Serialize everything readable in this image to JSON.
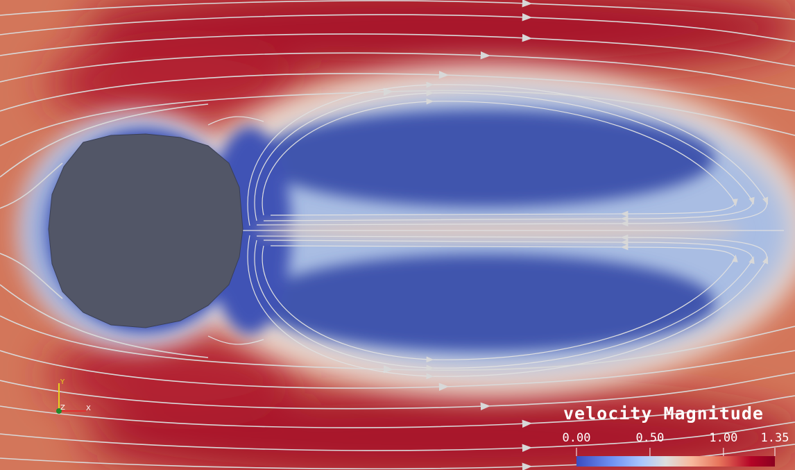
{
  "scene": {
    "field_name": "velocity Magnitude",
    "obstacle_color": "#525667"
  },
  "colorbar": {
    "title": "velocity Magnitude",
    "ticks": [
      "0.00",
      "0.50",
      "1.00",
      "1.35"
    ],
    "tick_values": [
      0.0,
      0.5,
      1.0,
      1.35
    ],
    "range": [
      0.0,
      1.35
    ],
    "colors": [
      "#3b4cc0",
      "#6f92f3",
      "#aac7fd",
      "#dddddd",
      "#f7b89c",
      "#e7745b",
      "#b40426",
      "#8c0020"
    ]
  },
  "orientation_axes": {
    "x_label": "X",
    "y_label": "Y",
    "z_label": "Z",
    "x_color": "#e03030",
    "y_color": "#e8d020",
    "z_color": "#1e8a2a"
  }
}
